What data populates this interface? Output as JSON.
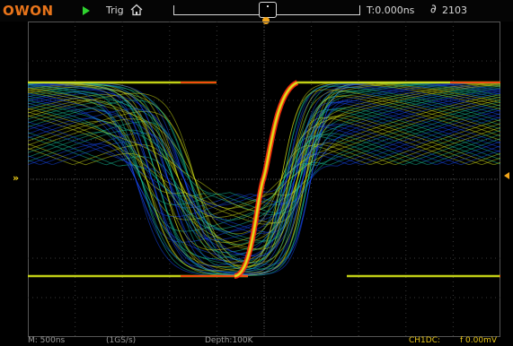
{
  "topbar": {
    "logo": "OWON",
    "run_icon": "run-play-icon",
    "trig_label": "Trig",
    "home_icon": "home-icon",
    "time_offset": "T:0.000ns",
    "capture_icon": "capture-counter-icon",
    "capture_count": "2103"
  },
  "bottombar": {
    "timebase": "M: 500ns",
    "sample_rate": "(1GS/s)",
    "depth": "Depth:100K",
    "channel": "CH1DC:",
    "channel_value": "f 0.00mV"
  },
  "colors": {
    "logo": "#e8741a",
    "run": "#2fd32f",
    "trigger_marker": "#f2a51a",
    "channel": "#e6c419",
    "grid": "#3a3a3a",
    "persistence_low": "#1a4cff",
    "persistence_mid": "#19c8a0",
    "persistence_high": "#d6e61a",
    "persistence_peak": "#ff2a10"
  }
}
